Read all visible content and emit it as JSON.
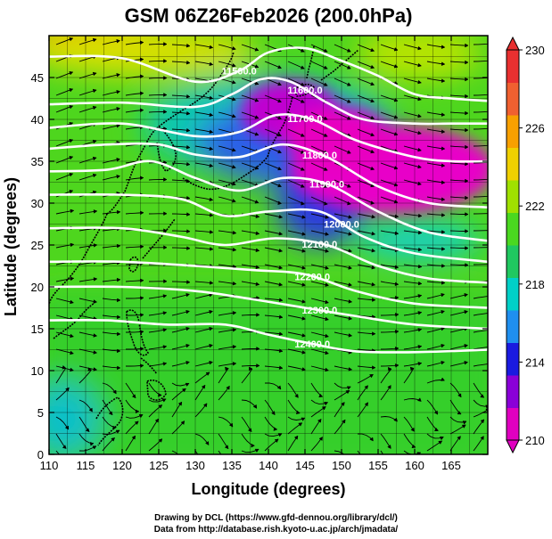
{
  "title": "GSM 06Z26Feb2026 (200.0hPa)",
  "credits": [
    "Drawing by DCL (https://www.gfd-dennou.org/library/dcl/)",
    "Data from http://database.rish.kyoto-u.ac.jp/arch/jmadata/"
  ],
  "colors": {
    "background": "#ffffff",
    "contour": "#ffffff",
    "streamline": "#000000",
    "coastline": "#000000"
  },
  "chart_data": {
    "type": "heatmap",
    "xlabel": "Longitude (degrees)",
    "ylabel": "Latitude  (degrees)",
    "xlim": [
      110,
      170
    ],
    "ylim": [
      0,
      50
    ],
    "xticks": [
      110,
      115,
      120,
      125,
      130,
      135,
      140,
      145,
      150,
      155,
      160,
      165
    ],
    "yticks": [
      0,
      5,
      10,
      15,
      20,
      25,
      30,
      35,
      40,
      45
    ],
    "colorbar": {
      "ticks": [
        210,
        214,
        218,
        222,
        226,
        230
      ],
      "range": [
        210,
        230
      ],
      "colors": [
        "#e000c0",
        "#8a00d8",
        "#1a1ae0",
        "#1f8ff0",
        "#00d0c8",
        "#20c860",
        "#4ad820",
        "#a0e000",
        "#f0d000",
        "#f8a000",
        "#f06030",
        "#e83030"
      ]
    },
    "contours": [
      {
        "label": "11500.0",
        "points": [
          [
            110,
            47.5
          ],
          [
            120,
            47.3
          ],
          [
            130,
            44.5
          ],
          [
            136,
            45.8
          ],
          [
            140,
            48
          ],
          [
            145,
            48.5
          ],
          [
            150,
            47
          ],
          [
            155,
            45.2
          ],
          [
            160,
            43
          ],
          [
            165,
            42.5
          ],
          [
            170,
            42.2
          ]
        ]
      },
      {
        "label": "11600.0",
        "points": [
          [
            110,
            41.8
          ],
          [
            120,
            42
          ],
          [
            130,
            41.5
          ],
          [
            135,
            43
          ],
          [
            139,
            44.8
          ],
          [
            143,
            44.5
          ],
          [
            148,
            42
          ],
          [
            153,
            40
          ],
          [
            160,
            39.5
          ],
          [
            165,
            39.5
          ],
          [
            170,
            39.5
          ]
        ]
      },
      {
        "label": "11700.0",
        "points": [
          [
            110,
            39
          ],
          [
            120,
            39.5
          ],
          [
            130,
            38
          ],
          [
            136,
            38.5
          ],
          [
            141,
            40.5
          ],
          [
            146,
            40
          ],
          [
            152,
            37.5
          ],
          [
            160,
            35.5
          ],
          [
            165,
            35
          ],
          [
            170,
            35
          ]
        ]
      },
      {
        "label": "11800.0",
        "points": [
          [
            110,
            36.5
          ],
          [
            118,
            37
          ],
          [
            125,
            37
          ],
          [
            130,
            35.8
          ],
          [
            136,
            35.5
          ],
          [
            142,
            37
          ],
          [
            148,
            35.5
          ],
          [
            155,
            32
          ],
          [
            162,
            30
          ],
          [
            170,
            29.5
          ]
        ]
      },
      {
        "label": "11900.0",
        "points": [
          [
            110,
            33.8
          ],
          [
            118,
            34
          ],
          [
            124,
            35
          ],
          [
            130,
            33
          ],
          [
            136,
            31.5
          ],
          [
            142,
            33
          ],
          [
            148,
            32.3
          ],
          [
            155,
            29
          ],
          [
            162,
            26.5
          ],
          [
            170,
            25.5
          ]
        ]
      },
      {
        "label": "12000.0",
        "points": [
          [
            110,
            31
          ],
          [
            120,
            31
          ],
          [
            128,
            30.5
          ],
          [
            134,
            28.5
          ],
          [
            140,
            29
          ],
          [
            147,
            29
          ],
          [
            153,
            26
          ],
          [
            160,
            24
          ],
          [
            170,
            23
          ]
        ]
      },
      {
        "label": "12100.0",
        "points": [
          [
            110,
            27
          ],
          [
            120,
            27
          ],
          [
            128,
            26
          ],
          [
            134,
            25
          ],
          [
            141,
            25.8
          ],
          [
            148,
            25
          ],
          [
            155,
            22.5
          ],
          [
            162,
            21
          ],
          [
            170,
            20.5
          ]
        ]
      },
      {
        "label": "12200.0",
        "points": [
          [
            110,
            23
          ],
          [
            120,
            23
          ],
          [
            130,
            22.5
          ],
          [
            138,
            22
          ],
          [
            145,
            21.5
          ],
          [
            152,
            19.5
          ],
          [
            160,
            18
          ],
          [
            170,
            17.5
          ]
        ]
      },
      {
        "label": "12300.0",
        "points": [
          [
            110,
            20
          ],
          [
            120,
            20
          ],
          [
            130,
            19.5
          ],
          [
            138,
            18.5
          ],
          [
            145,
            17.5
          ],
          [
            152,
            16.5
          ],
          [
            160,
            15.5
          ],
          [
            170,
            15
          ]
        ]
      },
      {
        "label": "12400.0",
        "points": [
          [
            110,
            16
          ],
          [
            118,
            16
          ],
          [
            126,
            15.5
          ],
          [
            134,
            15.5
          ],
          [
            140,
            14.3
          ],
          [
            146,
            13.2
          ],
          [
            152,
            12.3
          ],
          [
            160,
            12.2
          ],
          [
            170,
            12.5
          ]
        ]
      }
    ],
    "annotations": [
      "11500.0",
      "11600.0",
      "11700.0",
      "11800.0",
      "11900.0",
      "12000.0",
      "12100.0",
      "12200.0",
      "12300.0",
      "12400.0"
    ]
  }
}
